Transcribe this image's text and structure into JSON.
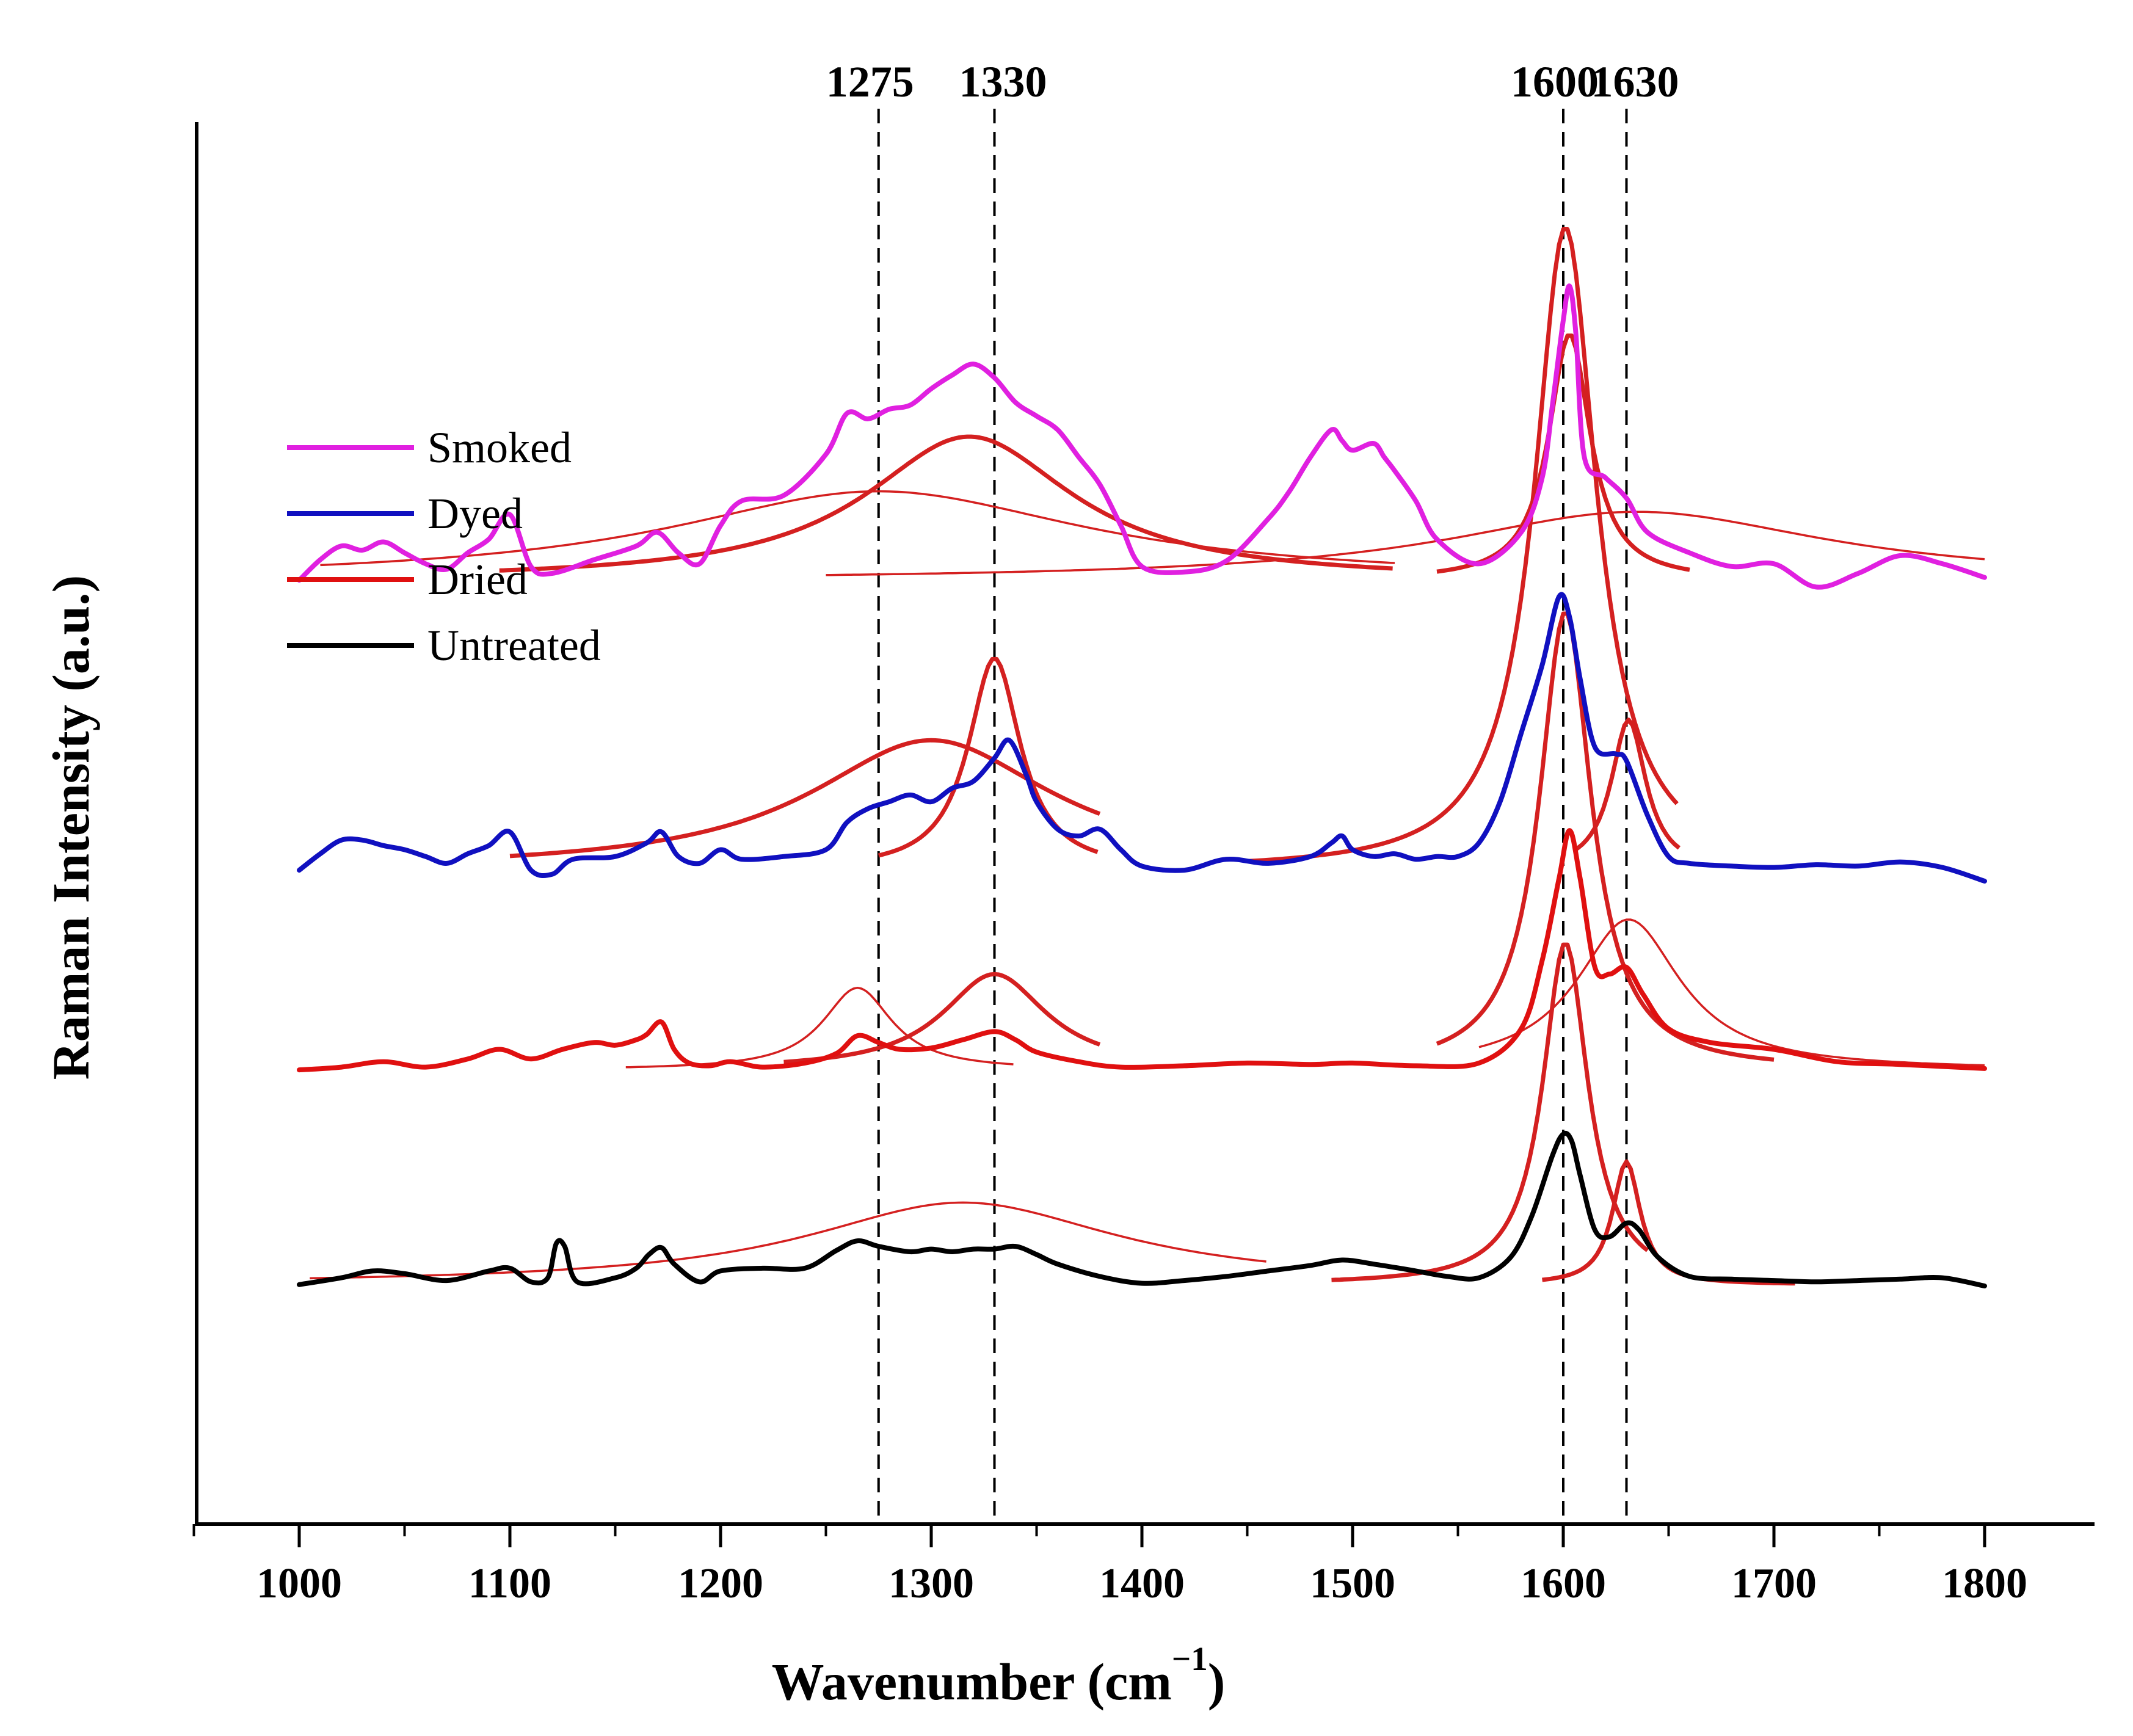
{
  "chart_data": {
    "type": "line",
    "title": "",
    "xlabel": "Wavenumber (cm",
    "xlabel_sup": "−1",
    "xlabel_close": ")",
    "ylabel": "Raman Intensity (a.u.)",
    "xlim": [
      950,
      1850
    ],
    "ylim": [
      0,
      1
    ],
    "xticks": [
      1000,
      1100,
      1200,
      1300,
      1400,
      1500,
      1600,
      1700,
      1800
    ],
    "yticks": [],
    "reference_lines": [
      {
        "x": 1275,
        "label": "1275"
      },
      {
        "x": 1330,
        "label": "1330"
      },
      {
        "x": 1600,
        "label": "1600"
      },
      {
        "x": 1630,
        "label": "1630"
      }
    ],
    "legend": {
      "position": "upper-left",
      "entries": [
        {
          "label": "Smoked",
          "color": "#e020e0"
        },
        {
          "label": "Dyed",
          "color": "#1010c0"
        },
        {
          "label": "Dried",
          "color": "#e01010"
        },
        {
          "label": "Untreated",
          "color": "#000000"
        }
      ]
    },
    "series": [
      {
        "name": "Smoked",
        "color": "#e020e0",
        "baseline": 0.845,
        "x": [
          1000,
          1010,
          1020,
          1030,
          1040,
          1050,
          1060,
          1070,
          1080,
          1090,
          1100,
          1110,
          1120,
          1140,
          1160,
          1170,
          1180,
          1190,
          1200,
          1210,
          1230,
          1250,
          1260,
          1270,
          1280,
          1290,
          1300,
          1310,
          1320,
          1330,
          1340,
          1350,
          1360,
          1370,
          1380,
          1390,
          1400,
          1420,
          1440,
          1460,
          1470,
          1480,
          1490,
          1495,
          1500,
          1510,
          1515,
          1520,
          1530,
          1540,
          1560,
          1580,
          1590,
          1595,
          1600,
          1603,
          1606,
          1610,
          1620,
          1630,
          1640,
          1660,
          1680,
          1700,
          1720,
          1740,
          1760,
          1780,
          1800
        ],
        "y": [
          0.0,
          0.015,
          0.025,
          0.022,
          0.028,
          0.02,
          0.012,
          0.008,
          0.02,
          0.03,
          0.048,
          0.01,
          0.005,
          0.015,
          0.025,
          0.035,
          0.02,
          0.012,
          0.04,
          0.058,
          0.062,
          0.092,
          0.122,
          0.118,
          0.125,
          0.128,
          0.14,
          0.15,
          0.158,
          0.148,
          0.13,
          0.12,
          0.11,
          0.09,
          0.07,
          0.04,
          0.01,
          0.006,
          0.014,
          0.045,
          0.065,
          0.09,
          0.11,
          0.102,
          0.095,
          0.1,
          0.09,
          0.08,
          0.058,
          0.03,
          0.012,
          0.035,
          0.075,
          0.13,
          0.19,
          0.215,
          0.18,
          0.09,
          0.075,
          0.06,
          0.035,
          0.02,
          0.01,
          0.012,
          -0.005,
          0.005,
          0.018,
          0.012,
          0.002
        ]
      },
      {
        "name": "Dyed",
        "color": "#1010c0",
        "baseline": 0.633,
        "x": [
          1000,
          1010,
          1020,
          1030,
          1040,
          1050,
          1060,
          1070,
          1080,
          1090,
          1100,
          1110,
          1120,
          1130,
          1150,
          1165,
          1172,
          1180,
          1190,
          1200,
          1210,
          1230,
          1250,
          1260,
          1270,
          1280,
          1290,
          1300,
          1310,
          1320,
          1330,
          1337,
          1345,
          1350,
          1360,
          1370,
          1380,
          1390,
          1400,
          1420,
          1440,
          1460,
          1480,
          1490,
          1495,
          1500,
          1510,
          1520,
          1530,
          1540,
          1550,
          1560,
          1570,
          1580,
          1590,
          1598,
          1603,
          1608,
          1615,
          1625,
          1630,
          1640,
          1650,
          1660,
          1680,
          1700,
          1720,
          1740,
          1760,
          1780,
          1800
        ],
        "y": [
          0.0,
          0.012,
          0.022,
          0.022,
          0.018,
          0.015,
          0.01,
          0.005,
          0.012,
          0.018,
          0.028,
          0.0,
          -0.003,
          0.008,
          0.01,
          0.02,
          0.028,
          0.01,
          0.005,
          0.015,
          0.008,
          0.01,
          0.015,
          0.035,
          0.045,
          0.05,
          0.055,
          0.05,
          0.06,
          0.065,
          0.082,
          0.095,
          0.07,
          0.05,
          0.03,
          0.025,
          0.03,
          0.015,
          0.003,
          0.0,
          0.008,
          0.005,
          0.01,
          0.02,
          0.025,
          0.015,
          0.01,
          0.012,
          0.008,
          0.01,
          0.01,
          0.02,
          0.05,
          0.1,
          0.15,
          0.2,
          0.185,
          0.14,
          0.09,
          0.085,
          0.08,
          0.04,
          0.01,
          0.005,
          0.003,
          0.002,
          0.004,
          0.003,
          0.006,
          0.002,
          -0.008
        ]
      },
      {
        "name": "Dried",
        "color": "#e01010",
        "baseline": 0.487,
        "x": [
          1000,
          1020,
          1040,
          1060,
          1080,
          1095,
          1110,
          1125,
          1140,
          1150,
          1160,
          1165,
          1172,
          1178,
          1185,
          1195,
          1205,
          1220,
          1240,
          1255,
          1265,
          1275,
          1285,
          1300,
          1315,
          1330,
          1340,
          1350,
          1370,
          1390,
          1420,
          1450,
          1480,
          1500,
          1530,
          1560,
          1580,
          1590,
          1598,
          1603,
          1608,
          1615,
          1622,
          1630,
          1638,
          1650,
          1670,
          1700,
          1730,
          1760,
          1800
        ],
        "y": [
          0.0,
          0.002,
          0.006,
          0.002,
          0.008,
          0.015,
          0.008,
          0.015,
          0.02,
          0.018,
          0.022,
          0.026,
          0.035,
          0.015,
          0.005,
          0.003,
          0.006,
          0.002,
          0.005,
          0.012,
          0.025,
          0.02,
          0.015,
          0.016,
          0.022,
          0.028,
          0.022,
          0.013,
          0.006,
          0.002,
          0.003,
          0.005,
          0.004,
          0.005,
          0.003,
          0.005,
          0.03,
          0.08,
          0.14,
          0.175,
          0.14,
          0.075,
          0.07,
          0.075,
          0.055,
          0.03,
          0.02,
          0.015,
          0.006,
          0.004,
          0.001
        ]
      },
      {
        "name": "Untreated",
        "color": "#000000",
        "baseline": 0.33,
        "x": [
          1000,
          1020,
          1035,
          1050,
          1070,
          1090,
          1100,
          1110,
          1118,
          1122,
          1126,
          1132,
          1150,
          1160,
          1166,
          1172,
          1178,
          1190,
          1200,
          1220,
          1240,
          1255,
          1265,
          1275,
          1290,
          1300,
          1310,
          1320,
          1330,
          1340,
          1350,
          1360,
          1380,
          1400,
          1420,
          1440,
          1460,
          1480,
          1495,
          1510,
          1530,
          1545,
          1560,
          1575,
          1585,
          1595,
          1600,
          1604,
          1608,
          1615,
          1622,
          1630,
          1636,
          1645,
          1660,
          1680,
          1700,
          1720,
          1740,
          1760,
          1780,
          1800
        ],
        "y": [
          0.0,
          0.005,
          0.01,
          0.008,
          0.003,
          0.01,
          0.012,
          0.002,
          0.005,
          0.03,
          0.028,
          0.002,
          0.005,
          0.012,
          0.022,
          0.027,
          0.015,
          0.002,
          0.01,
          0.012,
          0.012,
          0.025,
          0.032,
          0.028,
          0.024,
          0.026,
          0.024,
          0.026,
          0.026,
          0.028,
          0.022,
          0.015,
          0.006,
          0.001,
          0.003,
          0.006,
          0.01,
          0.014,
          0.018,
          0.015,
          0.01,
          0.006,
          0.005,
          0.02,
          0.05,
          0.095,
          0.11,
          0.105,
          0.08,
          0.04,
          0.035,
          0.045,
          0.04,
          0.02,
          0.006,
          0.004,
          0.003,
          0.002,
          0.003,
          0.004,
          0.005,
          -0.001
        ]
      }
    ],
    "fit_curves": [
      {
        "group": "Smoked",
        "baseline": 0.845,
        "peaks": [
          {
            "center": 1275,
            "amp": 0.065,
            "width": 120,
            "range": [
              1010,
              1520
            ],
            "bold": false
          },
          {
            "center": 1318,
            "amp": 0.105,
            "width": 60,
            "range": [
              1095,
              1520
            ],
            "bold": true
          },
          {
            "center": 1603,
            "amp": 0.18,
            "width": 12,
            "range": [
              1540,
              1660
            ],
            "bold": true
          },
          {
            "center": 1635,
            "amp": 0.05,
            "width": 110,
            "range": [
              1250,
              1800
            ],
            "bold": false
          }
        ]
      },
      {
        "group": "Dyed",
        "baseline": 0.633,
        "peaks": [
          {
            "center": 1300,
            "amp": 0.095,
            "width": 70,
            "range": [
              1100,
              1380
            ],
            "bold": true
          },
          {
            "center": 1330,
            "amp": 0.155,
            "width": 15,
            "range": [
              1275,
              1380
            ],
            "bold": true
          },
          {
            "center": 1601,
            "amp": 0.47,
            "width": 18,
            "range": [
              1450,
              1655
            ],
            "bold": true
          },
          {
            "center": 1631,
            "amp": 0.11,
            "width": 10,
            "range": [
              1605,
              1655
            ],
            "bold": true
          }
        ]
      },
      {
        "group": "Dried",
        "baseline": 0.487,
        "peaks": [
          {
            "center": 1265,
            "amp": 0.06,
            "width": 20,
            "range": [
              1155,
              1340
            ],
            "bold": false
          },
          {
            "center": 1330,
            "amp": 0.07,
            "width": 30,
            "range": [
              1230,
              1380
            ],
            "bold": true
          },
          {
            "center": 1601,
            "amp": 0.335,
            "width": 15,
            "range": [
              1540,
              1700
            ],
            "bold": true
          },
          {
            "center": 1631,
            "amp": 0.11,
            "width": 30,
            "range": [
              1560,
              1800
            ],
            "bold": false
          }
        ]
      },
      {
        "group": "Untreated",
        "baseline": 0.33,
        "peaks": [
          {
            "center": 1315,
            "amp": 0.06,
            "width": 90,
            "range": [
              1005,
              1460
            ],
            "bold": false
          },
          {
            "center": 1601,
            "amp": 0.25,
            "width": 13,
            "range": [
              1490,
              1640
            ],
            "bold": true
          },
          {
            "center": 1630,
            "amp": 0.09,
            "width": 8,
            "range": [
              1590,
              1710
            ],
            "bold": true
          }
        ]
      }
    ],
    "fit_color": "#d42020"
  }
}
